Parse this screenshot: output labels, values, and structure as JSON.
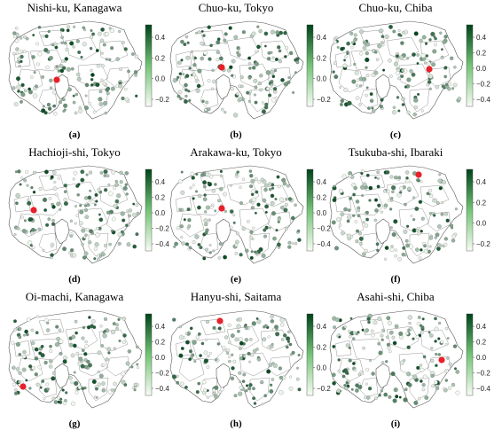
{
  "panels": [
    {
      "title": "Nishi-ku, Kanagawa",
      "label": "(a)",
      "colorbar_ticks": [
        "0.4",
        "0.2",
        "0.0",
        "−0.2"
      ],
      "focus": "Nishi-ku, Kanagawa"
    },
    {
      "title": "Chuo-ku, Tokyo",
      "label": "(b)",
      "colorbar_ticks": [
        "0.4",
        "0.2",
        "0.0",
        "−0.2"
      ],
      "focus": "Chuo-ku, Tokyo"
    },
    {
      "title": "Chuo-ku, Chiba",
      "label": "(c)",
      "colorbar_ticks": [
        "0.4",
        "0.2",
        "0.0",
        "−0.2",
        "−0.4"
      ],
      "focus": "Chuo-ku, Chiba"
    },
    {
      "title": "Hachioji-shi, Tokyo",
      "label": "(d)",
      "colorbar_ticks": [
        "0.4",
        "0.2",
        "0.0",
        "−0.2",
        "−0.4"
      ],
      "focus": "Hachioji-shi, Tokyo"
    },
    {
      "title": "Arakawa-ku, Tokyo",
      "label": "(e)",
      "colorbar_ticks": [
        "0.4",
        "0.2",
        "0.0",
        "−0.2",
        "−0.4"
      ],
      "focus": "Arakawa-ku, Tokyo"
    },
    {
      "title": "Tsukuba-shi, Ibaraki",
      "label": "(f)",
      "colorbar_ticks": [
        "0.4",
        "0.2",
        "0.0",
        "−0.2"
      ],
      "focus": "Tsukuba-shi, Ibaraki"
    },
    {
      "title": "Oi-machi, Kanagawa",
      "label": "(g)",
      "colorbar_ticks": [
        "0.4",
        "0.2",
        "0.0",
        "−0.2",
        "−0.4"
      ],
      "focus": "Oi-machi, Kanagawa"
    },
    {
      "title": "Hanyu-shi, Saitama",
      "label": "(h)",
      "colorbar_ticks": [
        "0.4",
        "0.2",
        "0.0",
        "−0.2"
      ],
      "focus": "Hanyu-shi, Saitama"
    },
    {
      "title": "Asahi-shi, Chiba",
      "label": "(i)",
      "colorbar_ticks": [
        "0.4",
        "0.2",
        "0.0",
        "−0.2",
        "−0.4"
      ],
      "focus": "Asahi-shi, Chiba"
    }
  ],
  "colors": {
    "marker": "#e8202a",
    "dark_green": "#00441b",
    "light_green": "#f7fcf5",
    "boundary": "#555555"
  }
}
